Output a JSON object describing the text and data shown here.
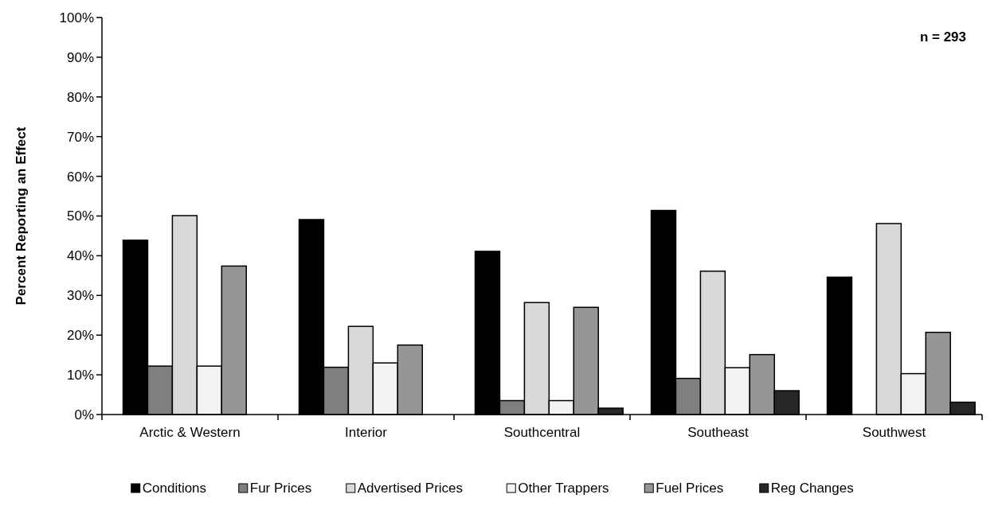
{
  "chart_data": {
    "type": "bar",
    "ylabel": "Percent Reporting an Effect",
    "categories": [
      "Arctic & Western",
      "Interior",
      "Southcentral",
      "Southeast",
      "Southwest"
    ],
    "series": [
      {
        "name": "Conditions",
        "color": "#000000",
        "values": [
          43.9,
          49.1,
          41.1,
          51.4,
          34.6
        ]
      },
      {
        "name": "Fur Prices",
        "color": "#7f7f7f",
        "values": [
          12.2,
          11.9,
          3.5,
          9.1,
          0
        ]
      },
      {
        "name": "Advertised Prices",
        "color": "#d9d9d9",
        "values": [
          50.1,
          22.2,
          28.2,
          36.1,
          48.1
        ]
      },
      {
        "name": "Other Trappers",
        "color": "#f2f2f2",
        "values": [
          12.2,
          13,
          3.5,
          11.8,
          10.3
        ]
      },
      {
        "name": "Fuel Prices",
        "color": "#969696",
        "values": [
          37.4,
          17.5,
          27,
          15.1,
          20.7
        ]
      },
      {
        "name": "Reg Changes",
        "color": "#262626",
        "values": [
          0,
          0,
          1.6,
          6,
          3.1
        ]
      }
    ],
    "ylim": [
      0,
      100
    ],
    "yticks": [
      {
        "value": 0,
        "label": "0%"
      },
      {
        "value": 10,
        "label": "10%"
      },
      {
        "value": 20,
        "label": "20%"
      },
      {
        "value": 30,
        "label": "30%"
      },
      {
        "value": 40,
        "label": "40%"
      },
      {
        "value": 50,
        "label": "50%"
      },
      {
        "value": 60,
        "label": "60%"
      },
      {
        "value": 70,
        "label": "70%"
      },
      {
        "value": 80,
        "label": "80%"
      },
      {
        "value": 90,
        "label": "90%"
      },
      {
        "value": 100,
        "label": "100%"
      }
    ],
    "annotations": [
      "n = 293"
    ],
    "legend": "bottom",
    "grid": false
  }
}
